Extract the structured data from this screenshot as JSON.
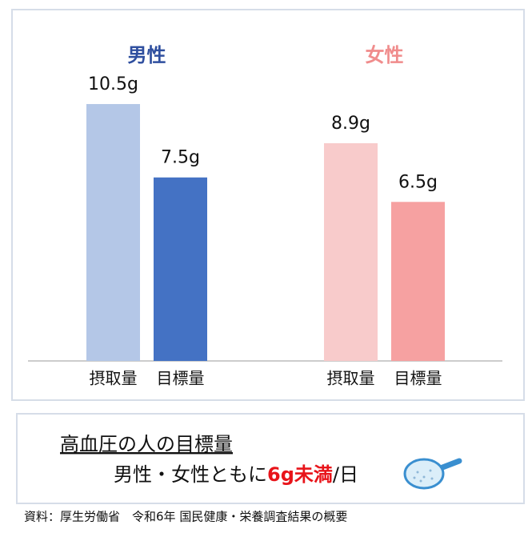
{
  "chart_data": {
    "type": "grouped-bar",
    "groups": [
      {
        "name": "男性",
        "color": "#2f4f9f",
        "categories": [
          "摂取量",
          "目標量"
        ],
        "values": [
          10.5,
          7.5
        ],
        "value_labels": [
          "10.5g",
          "7.5g"
        ],
        "colors": [
          "#b4c7e7",
          "#4472c4"
        ]
      },
      {
        "name": "女性",
        "color": "#f08c8c",
        "categories": [
          "摂取量",
          "目標量"
        ],
        "values": [
          8.9,
          6.5
        ],
        "value_labels": [
          "8.9g",
          "6.5g"
        ],
        "colors": [
          "#f8cbcb",
          "#f6a1a1"
        ]
      }
    ]
  },
  "note": {
    "title": "高血圧の人の目標量",
    "text_before": "男性・女性ともに",
    "emphasis": "6g未満",
    "text_after": "/日"
  },
  "source": "資料：厚生労働省　令和6年 国民健康・栄養調査結果の概要"
}
